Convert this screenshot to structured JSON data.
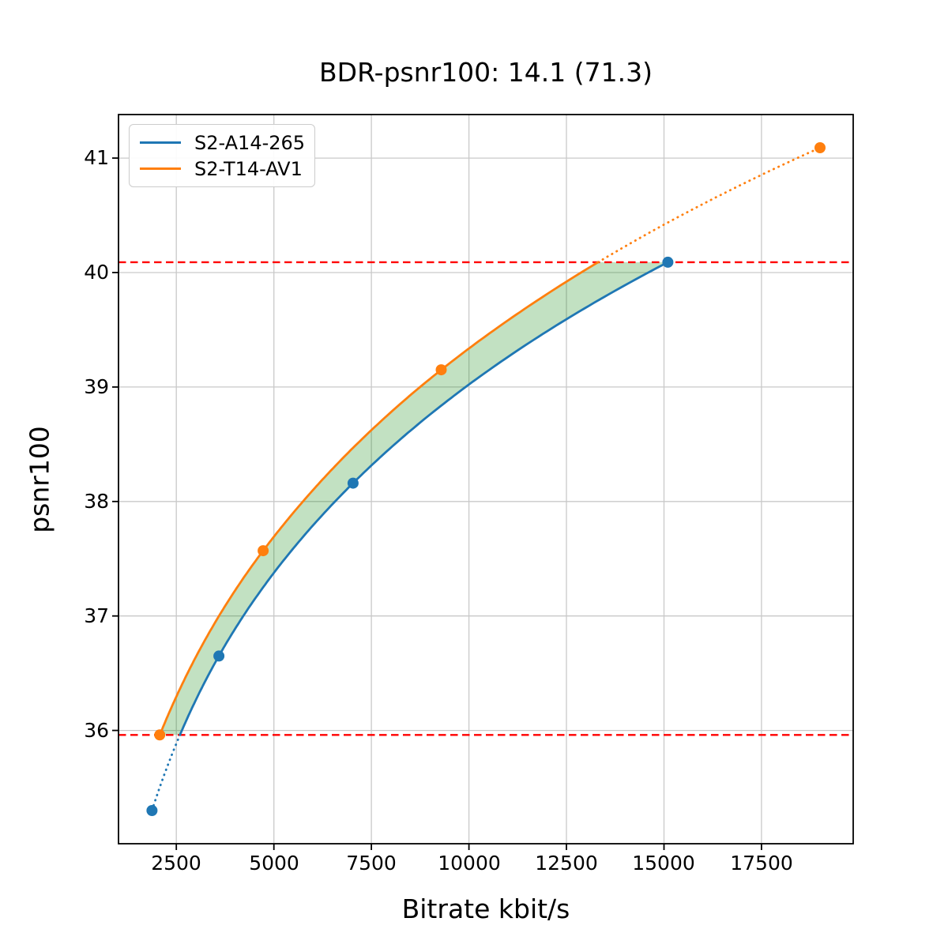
{
  "chart_data": {
    "type": "line",
    "title": "BDR-psnr100: 14.1 (71.3)",
    "xlabel": "Bitrate kbit/s",
    "ylabel": "psnr100",
    "xlim": [
      1017,
      19851
    ],
    "ylim": [
      35.01,
      41.38
    ],
    "x_ticks": [
      2500,
      5000,
      7500,
      10000,
      12500,
      15000,
      17500
    ],
    "x_tick_labels": [
      "2500",
      "5000",
      "7500",
      "10000",
      "12500",
      "15000",
      "17500"
    ],
    "y_ticks": [
      36,
      37,
      38,
      39,
      40,
      41
    ],
    "y_tick_labels": [
      "36",
      "37",
      "38",
      "39",
      "40",
      "41"
    ],
    "grid": true,
    "grid_color": "#c9c9c9",
    "legend_position": "upper left",
    "interpolation": "pchip-log-x",
    "series": [
      {
        "name": "S2-A14-265",
        "color": "#1f77b4",
        "points": [
          [
            1875,
            35.3
          ],
          [
            3590,
            36.65
          ],
          [
            7030,
            38.16
          ],
          [
            15100,
            40.09
          ]
        ]
      },
      {
        "name": "S2-T14-AV1",
        "color": "#ff7f0e",
        "points": [
          [
            2075,
            35.96
          ],
          [
            4725,
            37.57
          ],
          [
            9290,
            39.15
          ],
          [
            19000,
            41.09
          ]
        ]
      }
    ],
    "overlap_interval": {
      "lower_psnr": 35.96,
      "upper_psnr": 40.09,
      "line_color": "#ff0000",
      "line_style": "dashed"
    },
    "bd_fill": {
      "color": "#008000",
      "opacity": 0.24
    }
  }
}
